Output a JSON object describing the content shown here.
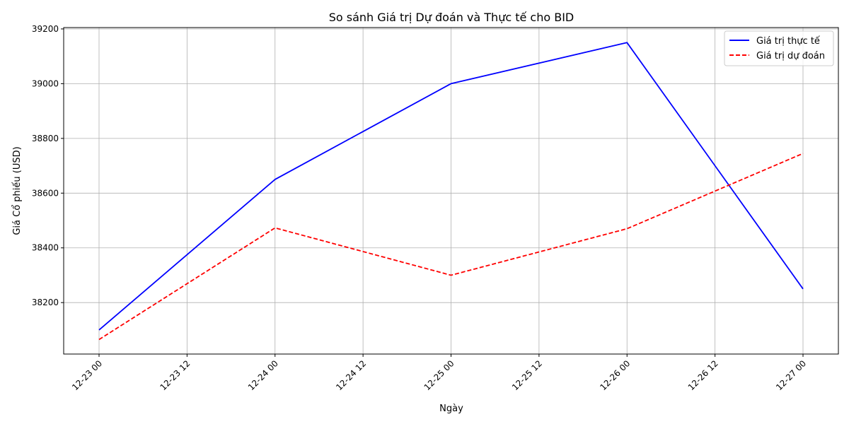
{
  "chart_data": {
    "type": "line",
    "title": "So sánh Giá trị Dự đoán và Thực tế cho BID",
    "xlabel": "Ngày",
    "ylabel": "Giá Cổ phiếu (USD)",
    "x": [
      "2024-12-23",
      "2024-12-24",
      "2024-12-25",
      "2024-12-26",
      "2024-12-27"
    ],
    "x_ticks": [
      "12-23 00",
      "12-23 12",
      "12-24 00",
      "12-24 12",
      "12-25 00",
      "12-25 12",
      "12-26 00",
      "12-26 12",
      "12-27 00"
    ],
    "y_ticks": [
      38200,
      38400,
      38600,
      38800,
      39000,
      39200
    ],
    "ylim": [
      38012,
      39205
    ],
    "grid": true,
    "legend_position": "top-right",
    "series": [
      {
        "name": "Giá trị thực tế",
        "values": [
          38100,
          38650,
          39000,
          39150,
          38250
        ],
        "color": "#0000ff",
        "style": "solid"
      },
      {
        "name": "Giá trị dự đoán",
        "values": [
          38065,
          38473,
          38300,
          38470,
          38745
        ],
        "color": "#ff0000",
        "style": "dashed"
      }
    ]
  }
}
